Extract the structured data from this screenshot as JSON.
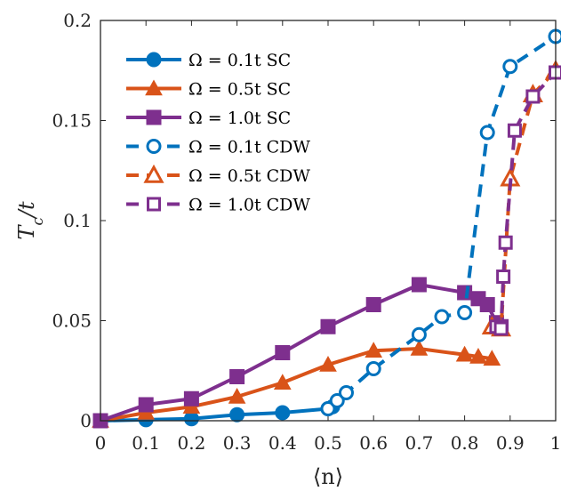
{
  "chart_data": {
    "type": "line",
    "xlabel": "⟨n⟩",
    "ylabel": "T_c/t",
    "xlim": [
      0,
      1
    ],
    "ylim": [
      0,
      0.2
    ],
    "xticks": [
      0,
      0.1,
      0.2,
      0.3,
      0.4,
      0.5,
      0.6,
      0.7,
      0.8,
      0.9,
      1
    ],
    "xtick_labels": [
      "0",
      "0.1",
      "0.2",
      "0.3",
      "0.4",
      "0.5",
      "0.6",
      "0.7",
      "0.8",
      "0.9",
      "1"
    ],
    "yticks": [
      0,
      0.05,
      0.1,
      0.15,
      0.2
    ],
    "ytick_labels": [
      "0",
      "0.05",
      "0.1",
      "0.15",
      "0.2"
    ],
    "grid": false,
    "legend_position": "top-left",
    "series": [
      {
        "name": "Ω = 0.1t SC",
        "color": "#0072BD",
        "marker": "circle",
        "filled": true,
        "dashed": false,
        "x": [
          0,
          0.1,
          0.2,
          0.3,
          0.4,
          0.5,
          0.51
        ],
        "y": [
          0,
          0.0005,
          0.001,
          0.003,
          0.004,
          0.006,
          0.007
        ]
      },
      {
        "name": "Ω = 0.5t SC",
        "color": "#D95319",
        "marker": "triangle",
        "filled": true,
        "dashed": false,
        "x": [
          0,
          0.1,
          0.2,
          0.3,
          0.4,
          0.5,
          0.6,
          0.7,
          0.8,
          0.83,
          0.86
        ],
        "y": [
          0,
          0.004,
          0.007,
          0.012,
          0.019,
          0.028,
          0.035,
          0.036,
          0.033,
          0.032,
          0.031
        ]
      },
      {
        "name": "Ω = 1.0t SC",
        "color": "#7E2F8E",
        "marker": "square",
        "filled": true,
        "dashed": false,
        "x": [
          0,
          0.1,
          0.2,
          0.3,
          0.4,
          0.5,
          0.6,
          0.7,
          0.8,
          0.83,
          0.85,
          0.87,
          0.88
        ],
        "y": [
          0,
          0.008,
          0.011,
          0.022,
          0.034,
          0.047,
          0.058,
          0.068,
          0.064,
          0.061,
          0.058,
          0.049,
          0.047
        ]
      },
      {
        "name": "Ω = 0.1t CDW",
        "color": "#0072BD",
        "marker": "circle",
        "filled": false,
        "dashed": true,
        "x": [
          0.5,
          0.52,
          0.54,
          0.6,
          0.7,
          0.75,
          0.8,
          0.85,
          0.9,
          1.0
        ],
        "y": [
          0.006,
          0.01,
          0.014,
          0.026,
          0.043,
          0.052,
          0.054,
          0.144,
          0.177,
          0.192
        ]
      },
      {
        "name": "Ω = 0.5t CDW",
        "color": "#D95319",
        "marker": "triangle",
        "filled": false,
        "dashed": true,
        "x": [
          0.86,
          0.88,
          0.9,
          0.95,
          1.0
        ],
        "y": [
          0.047,
          0.046,
          0.121,
          0.163,
          0.175
        ]
      },
      {
        "name": "Ω = 1.0t CDW",
        "color": "#7E2F8E",
        "marker": "square",
        "filled": false,
        "dashed": true,
        "x": [
          0.87,
          0.88,
          0.885,
          0.89,
          0.91,
          0.95,
          1.0
        ],
        "y": [
          0.047,
          0.046,
          0.072,
          0.089,
          0.145,
          0.162,
          0.174
        ]
      }
    ]
  }
}
